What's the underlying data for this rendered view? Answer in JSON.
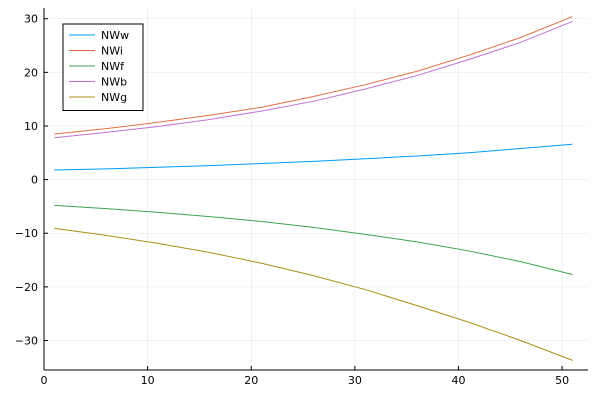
{
  "chart_data": {
    "type": "line",
    "title": "",
    "xlabel": "",
    "ylabel": "",
    "xlim": [
      0,
      52.5
    ],
    "ylim": [
      -35.5,
      32.0
    ],
    "x_ticks": [
      0,
      10,
      20,
      30,
      40,
      50
    ],
    "y_ticks": [
      -30,
      -20,
      -10,
      0,
      10,
      20,
      30
    ],
    "x_tick_labels": [
      "0",
      "10",
      "20",
      "30",
      "40",
      "50"
    ],
    "y_tick_labels": [
      "−30",
      "−20",
      "−10",
      "0",
      "10",
      "20",
      "30"
    ],
    "grid": true,
    "legend_position": "top-left",
    "x": [
      1,
      6,
      11,
      16,
      21,
      26,
      31,
      36,
      41,
      46,
      51
    ],
    "series": [
      {
        "name": "NWw",
        "color": "#009af9",
        "values": [
          1.8,
          2.0,
          2.3,
          2.6,
          3.0,
          3.4,
          3.9,
          4.4,
          5.0,
          5.8,
          6.6
        ]
      },
      {
        "name": "NWi",
        "color": "#e26f46",
        "values": [
          8.5,
          9.5,
          10.7,
          12.0,
          13.5,
          15.5,
          17.7,
          20.2,
          23.2,
          26.5,
          30.4
        ]
      },
      {
        "name": "NWf",
        "color": "#3da44d",
        "values": [
          -4.8,
          -5.4,
          -6.1,
          -6.9,
          -7.8,
          -8.9,
          -10.2,
          -11.6,
          -13.3,
          -15.3,
          -17.7
        ]
      },
      {
        "name": "NWb",
        "color": "#c271d2",
        "values": [
          7.8,
          8.8,
          9.9,
          11.2,
          12.8,
          14.6,
          16.9,
          19.4,
          22.4,
          25.6,
          29.5
        ]
      },
      {
        "name": "NWg",
        "color": "#ac8e18",
        "values": [
          -9.1,
          -10.4,
          -11.9,
          -13.6,
          -15.6,
          -17.9,
          -20.5,
          -23.5,
          -26.6,
          -30.0,
          -33.7
        ]
      }
    ]
  }
}
